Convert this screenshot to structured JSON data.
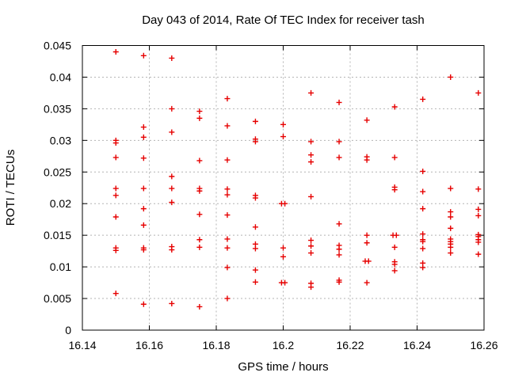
{
  "window": {
    "background": "#ffffff"
  },
  "chart_data": {
    "type": "scatter",
    "title": "Day 043 of 2014, Rate Of TEC Index for receiver tash",
    "xlabel": "GPS time / hours",
    "ylabel": "ROTI / TECUs",
    "xlim": [
      16.14,
      16.26
    ],
    "ylim": [
      0,
      0.045
    ],
    "xticks": [
      16.14,
      16.16,
      16.18,
      16.2,
      16.22,
      16.24,
      16.26
    ],
    "xtick_labels": [
      "16.14",
      "16.16",
      "16.18",
      "16.2",
      "16.22",
      "16.24",
      "16.26"
    ],
    "yticks": [
      0,
      0.005,
      0.01,
      0.015,
      0.02,
      0.025,
      0.03,
      0.035,
      0.04,
      0.045
    ],
    "ytick_labels": [
      "0",
      "0.005",
      "0.01",
      "0.015",
      "0.02",
      "0.025",
      "0.03",
      "0.035",
      "0.04",
      "0.045"
    ],
    "grid": true,
    "legend": "none",
    "marker": {
      "shape": "plus",
      "color": "#e60000",
      "size": 7
    },
    "grid_color": "#b4b4b4",
    "axis_color": "#000000",
    "series": [
      {
        "name": "roti",
        "points": [
          [
            16.15,
            0.044
          ],
          [
            16.15,
            0.03
          ],
          [
            16.15,
            0.0296
          ],
          [
            16.15,
            0.0273
          ],
          [
            16.15,
            0.0224
          ],
          [
            16.15,
            0.0213
          ],
          [
            16.15,
            0.0179
          ],
          [
            16.15,
            0.013
          ],
          [
            16.15,
            0.0126
          ],
          [
            16.15,
            0.0058
          ],
          [
            16.1583,
            0.0434
          ],
          [
            16.1583,
            0.0321
          ],
          [
            16.1583,
            0.0305
          ],
          [
            16.1583,
            0.0272
          ],
          [
            16.1583,
            0.0224
          ],
          [
            16.1583,
            0.0192
          ],
          [
            16.1583,
            0.0166
          ],
          [
            16.1583,
            0.013
          ],
          [
            16.1583,
            0.0127
          ],
          [
            16.1583,
            0.0041
          ],
          [
            16.1667,
            0.043
          ],
          [
            16.1667,
            0.035
          ],
          [
            16.1667,
            0.0313
          ],
          [
            16.1667,
            0.0243
          ],
          [
            16.1667,
            0.0224
          ],
          [
            16.1667,
            0.0202
          ],
          [
            16.1667,
            0.0132
          ],
          [
            16.1667,
            0.0127
          ],
          [
            16.1667,
            0.0042
          ],
          [
            16.175,
            0.0346
          ],
          [
            16.175,
            0.0335
          ],
          [
            16.175,
            0.0268
          ],
          [
            16.175,
            0.0224
          ],
          [
            16.175,
            0.022
          ],
          [
            16.175,
            0.0183
          ],
          [
            16.175,
            0.0143
          ],
          [
            16.175,
            0.0131
          ],
          [
            16.175,
            0.0037
          ],
          [
            16.1833,
            0.0366
          ],
          [
            16.1833,
            0.0323
          ],
          [
            16.1833,
            0.0269
          ],
          [
            16.1833,
            0.0223
          ],
          [
            16.1833,
            0.0214
          ],
          [
            16.1833,
            0.0182
          ],
          [
            16.1833,
            0.0144
          ],
          [
            16.1833,
            0.013
          ],
          [
            16.1833,
            0.0099
          ],
          [
            16.1833,
            0.005
          ],
          [
            16.1917,
            0.033
          ],
          [
            16.1917,
            0.0302
          ],
          [
            16.1917,
            0.0298
          ],
          [
            16.1917,
            0.0213
          ],
          [
            16.1917,
            0.0209
          ],
          [
            16.1917,
            0.0163
          ],
          [
            16.1917,
            0.0136
          ],
          [
            16.1917,
            0.0129
          ],
          [
            16.1917,
            0.0095
          ],
          [
            16.1917,
            0.0076
          ],
          [
            16.2,
            0.0325
          ],
          [
            16.2,
            0.0306
          ],
          [
            16.1995,
            0.02
          ],
          [
            16.2005,
            0.02
          ],
          [
            16.2,
            0.013
          ],
          [
            16.2,
            0.0116
          ],
          [
            16.1995,
            0.0075
          ],
          [
            16.2005,
            0.0075
          ],
          [
            16.2083,
            0.0375
          ],
          [
            16.2083,
            0.0298
          ],
          [
            16.2083,
            0.0277
          ],
          [
            16.2083,
            0.0266
          ],
          [
            16.2083,
            0.0211
          ],
          [
            16.2083,
            0.0142
          ],
          [
            16.2083,
            0.0133
          ],
          [
            16.2083,
            0.0122
          ],
          [
            16.2083,
            0.0074
          ],
          [
            16.2083,
            0.0068
          ],
          [
            16.2167,
            0.036
          ],
          [
            16.2167,
            0.0298
          ],
          [
            16.2167,
            0.0273
          ],
          [
            16.2167,
            0.0168
          ],
          [
            16.2167,
            0.0134
          ],
          [
            16.2167,
            0.0128
          ],
          [
            16.2167,
            0.0119
          ],
          [
            16.2167,
            0.0079
          ],
          [
            16.2167,
            0.0076
          ],
          [
            16.225,
            0.0332
          ],
          [
            16.225,
            0.0274
          ],
          [
            16.225,
            0.0269
          ],
          [
            16.225,
            0.015
          ],
          [
            16.225,
            0.0138
          ],
          [
            16.2245,
            0.0109
          ],
          [
            16.2255,
            0.0109
          ],
          [
            16.225,
            0.0075
          ],
          [
            16.2333,
            0.0353
          ],
          [
            16.2333,
            0.0273
          ],
          [
            16.2333,
            0.0226
          ],
          [
            16.2333,
            0.0222
          ],
          [
            16.2328,
            0.015
          ],
          [
            16.2338,
            0.015
          ],
          [
            16.2333,
            0.0131
          ],
          [
            16.2333,
            0.0108
          ],
          [
            16.2333,
            0.0104
          ],
          [
            16.2333,
            0.0094
          ],
          [
            16.2417,
            0.0365
          ],
          [
            16.2417,
            0.0251
          ],
          [
            16.2417,
            0.0219
          ],
          [
            16.2417,
            0.0192
          ],
          [
            16.2417,
            0.0152
          ],
          [
            16.2417,
            0.0143
          ],
          [
            16.2417,
            0.014
          ],
          [
            16.2417,
            0.0129
          ],
          [
            16.2417,
            0.0106
          ],
          [
            16.2417,
            0.0099
          ],
          [
            16.25,
            0.04
          ],
          [
            16.25,
            0.0224
          ],
          [
            16.25,
            0.0187
          ],
          [
            16.25,
            0.0179
          ],
          [
            16.25,
            0.0161
          ],
          [
            16.25,
            0.0144
          ],
          [
            16.25,
            0.014
          ],
          [
            16.25,
            0.0136
          ],
          [
            16.25,
            0.0131
          ],
          [
            16.25,
            0.0122
          ],
          [
            16.2583,
            0.0375
          ],
          [
            16.2583,
            0.0223
          ],
          [
            16.2583,
            0.0191
          ],
          [
            16.2583,
            0.0181
          ],
          [
            16.2583,
            0.0151
          ],
          [
            16.2583,
            0.0148
          ],
          [
            16.2583,
            0.0143
          ],
          [
            16.2583,
            0.0139
          ],
          [
            16.2583,
            0.012
          ]
        ]
      }
    ]
  }
}
